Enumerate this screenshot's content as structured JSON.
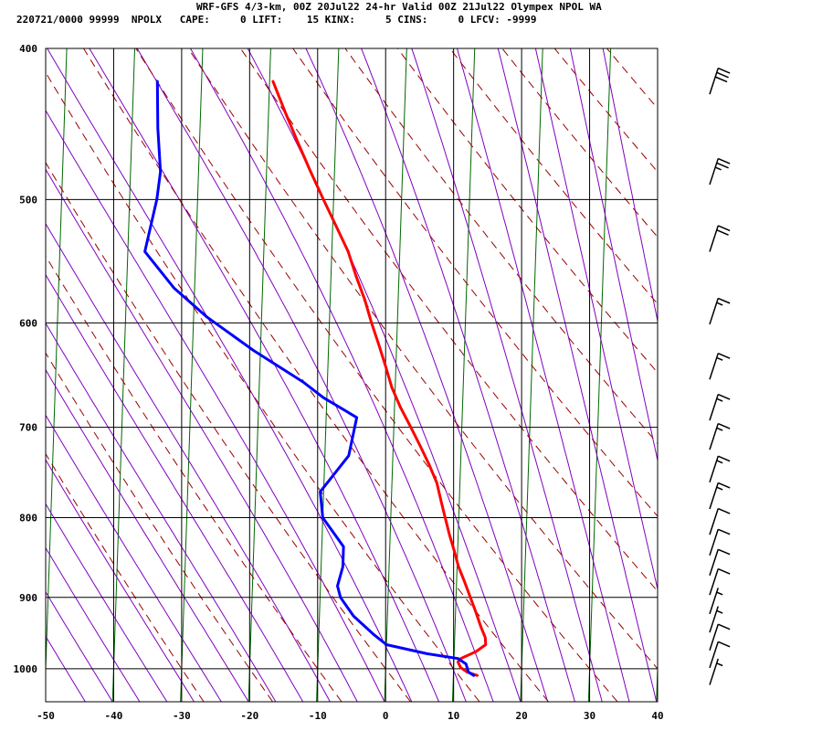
{
  "header": {
    "title": "WRF-GFS 4/3-km, 00Z 20Jul22 24-hr Valid 00Z 21Jul22 Olympex NPOL WA",
    "stats": "220721/0000 99999  NPOLX   CAPE:     0 LIFT:    15 KINX:     5 CINS:     0 LFCV: -9999"
  },
  "chart_data": {
    "type": "line",
    "subtype": "skew-T log-p sounding",
    "title": "WRF-GFS 4/3-km, 00Z 20Jul22 24-hr Valid 00Z 21Jul22 Olympex NPOL WA",
    "xlabel": "",
    "ylabel": "",
    "xlim": [
      -50,
      40
    ],
    "ylim": [
      1050,
      400
    ],
    "y_scale": "log",
    "x_ticks": [
      "-50",
      "-40",
      "-30",
      "-20",
      "-10",
      "0",
      "10",
      "20",
      "30",
      "40"
    ],
    "y_ticks": [
      "400",
      "500",
      "600",
      "700",
      "800",
      "900",
      "1000"
    ],
    "grid": true,
    "colors": {
      "temperature": "#ff0000",
      "dewpoint": "#0000ff",
      "dry_adiabat": "#990000",
      "moist_adiabat": "#8000c0",
      "isotherm": "#006600",
      "grid": "#000000"
    },
    "series": [
      {
        "key": "temperature",
        "points": [
          [
            -19.5,
            420
          ],
          [
            -17.5,
            440
          ],
          [
            -15.5,
            460
          ],
          [
            -13.5,
            480
          ],
          [
            -11.5,
            500
          ],
          [
            -9.5,
            520
          ],
          [
            -7.6,
            540
          ],
          [
            -6.3,
            560
          ],
          [
            -4.9,
            580
          ],
          [
            -3.8,
            600
          ],
          [
            -2.6,
            620
          ],
          [
            -1.5,
            640
          ],
          [
            -0.5,
            660
          ],
          [
            0.9,
            680
          ],
          [
            2.5,
            700
          ],
          [
            4.0,
            720
          ],
          [
            5.4,
            740
          ],
          [
            6.6,
            760
          ],
          [
            7.3,
            780
          ],
          [
            8.0,
            800
          ],
          [
            8.7,
            820
          ],
          [
            9.5,
            840
          ],
          [
            10.2,
            860
          ],
          [
            11.2,
            880
          ],
          [
            12.1,
            900
          ],
          [
            13.0,
            920
          ],
          [
            13.8,
            940
          ],
          [
            14.5,
            955
          ],
          [
            14.6,
            965
          ],
          [
            13.2,
            975
          ],
          [
            11.0,
            985
          ],
          [
            10.6,
            990
          ],
          [
            11.0,
            998
          ],
          [
            12.0,
            1005
          ],
          [
            13.5,
            1010
          ]
        ]
      },
      {
        "key": "dewpoint",
        "points": [
          [
            -36.5,
            420
          ],
          [
            -36.2,
            450
          ],
          [
            -35.6,
            480
          ],
          [
            -36.0,
            500
          ],
          [
            -37.5,
            540
          ],
          [
            -33.0,
            570
          ],
          [
            -28.0,
            595
          ],
          [
            -21.0,
            625
          ],
          [
            -13.5,
            655
          ],
          [
            -10.5,
            670
          ],
          [
            -5.5,
            690
          ],
          [
            -6.5,
            730
          ],
          [
            -10.5,
            770
          ],
          [
            -10.0,
            800
          ],
          [
            -6.8,
            835
          ],
          [
            -6.8,
            860
          ],
          [
            -7.5,
            885
          ],
          [
            -7.0,
            900
          ],
          [
            -5.0,
            925
          ],
          [
            -2.0,
            950
          ],
          [
            0.0,
            965
          ],
          [
            6.0,
            978
          ],
          [
            10.6,
            985
          ],
          [
            11.8,
            993
          ],
          [
            12.2,
            1005
          ],
          [
            13.0,
            1010
          ]
        ]
      }
    ],
    "wind_barbs": [
      {
        "pressure": 420,
        "speed_kt": 30
      },
      {
        "pressure": 480,
        "speed_kt": 25
      },
      {
        "pressure": 530,
        "speed_kt": 20
      },
      {
        "pressure": 590,
        "speed_kt": 15
      },
      {
        "pressure": 640,
        "speed_kt": 15
      },
      {
        "pressure": 680,
        "speed_kt": 15
      },
      {
        "pressure": 710,
        "speed_kt": 15
      },
      {
        "pressure": 745,
        "speed_kt": 15
      },
      {
        "pressure": 775,
        "speed_kt": 15
      },
      {
        "pressure": 805,
        "speed_kt": 10
      },
      {
        "pressure": 830,
        "speed_kt": 10
      },
      {
        "pressure": 855,
        "speed_kt": 10
      },
      {
        "pressure": 880,
        "speed_kt": 10
      },
      {
        "pressure": 905,
        "speed_kt": 5
      },
      {
        "pressure": 930,
        "speed_kt": 5
      },
      {
        "pressure": 955,
        "speed_kt": 10
      },
      {
        "pressure": 980,
        "speed_kt": 10
      },
      {
        "pressure": 1005,
        "speed_kt": 5
      }
    ]
  }
}
